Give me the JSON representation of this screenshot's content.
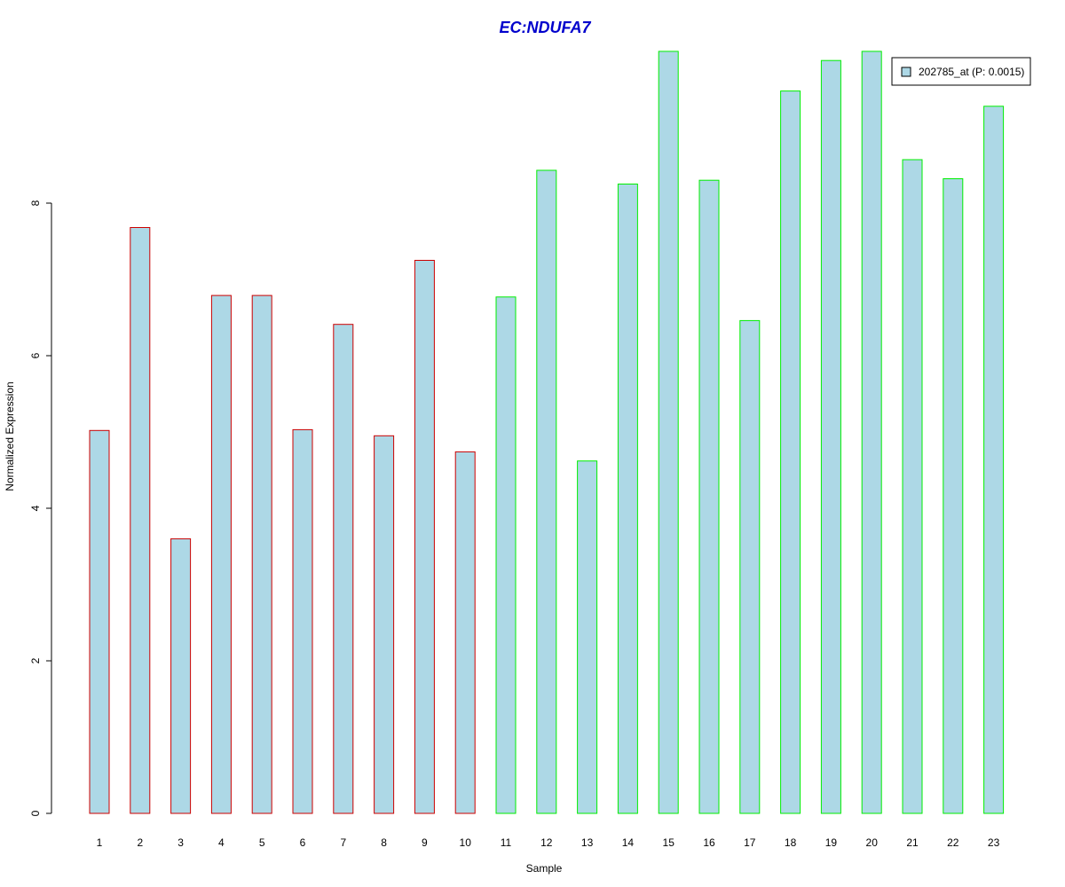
{
  "chart_data": {
    "type": "bar",
    "title": "EC:NDUFA7",
    "xlabel": "Sample",
    "ylabel": "Normalized Expression",
    "categories": [
      "1",
      "2",
      "3",
      "4",
      "5",
      "6",
      "7",
      "8",
      "9",
      "10",
      "11",
      "12",
      "13",
      "14",
      "15",
      "16",
      "17",
      "18",
      "19",
      "20",
      "21",
      "22",
      "23"
    ],
    "series": [
      {
        "name": "202785_at (P: 0.0015)",
        "values": [
          5.02,
          7.68,
          3.6,
          6.79,
          6.79,
          5.03,
          6.41,
          4.95,
          7.25,
          4.74,
          6.77,
          8.43,
          4.62,
          8.25,
          9.99,
          8.3,
          6.46,
          9.47,
          9.87,
          9.99,
          8.57,
          8.32,
          9.27
        ]
      }
    ],
    "group_border_colors": [
      "#cc0000",
      "#cc0000",
      "#cc0000",
      "#cc0000",
      "#cc0000",
      "#cc0000",
      "#cc0000",
      "#cc0000",
      "#cc0000",
      "#cc0000",
      "#00ee00",
      "#00ee00",
      "#00ee00",
      "#00ee00",
      "#00ee00",
      "#00ee00",
      "#00ee00",
      "#00ee00",
      "#00ee00",
      "#00ee00",
      "#00ee00",
      "#00ee00",
      "#00ee00"
    ],
    "y_ticks": [
      "0",
      "2",
      "4",
      "6",
      "8"
    ],
    "ylim": [
      0,
      10
    ],
    "bar_fill": "#add8e6",
    "title_color": "#0000cc",
    "legend_position": "top-right",
    "grid": false
  }
}
